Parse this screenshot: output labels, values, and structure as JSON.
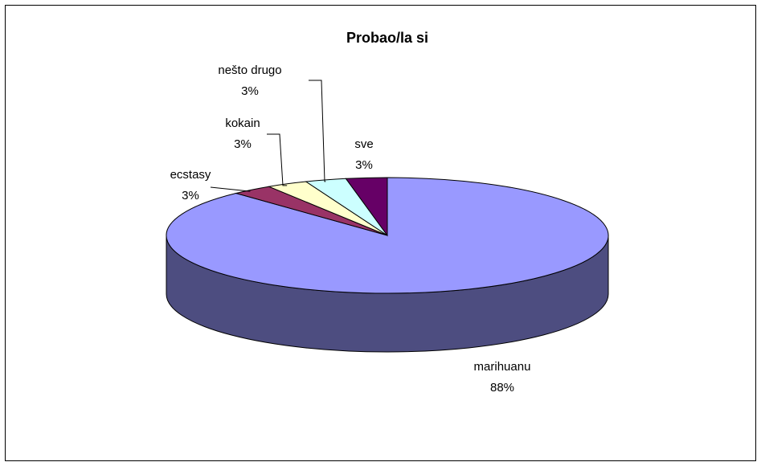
{
  "chart_data": {
    "type": "pie",
    "title": "Probao/la si",
    "categories": [
      "marihuanu",
      "ecstasy",
      "kokain",
      "nešto drugo",
      "sve"
    ],
    "values": [
      88,
      3,
      3,
      3,
      3
    ],
    "value_labels": [
      "88%",
      "3%",
      "3%",
      "3%",
      "3%"
    ],
    "colors": [
      "#9999ff",
      "#993366",
      "#ffffcc",
      "#ccffff",
      "#660066"
    ]
  }
}
